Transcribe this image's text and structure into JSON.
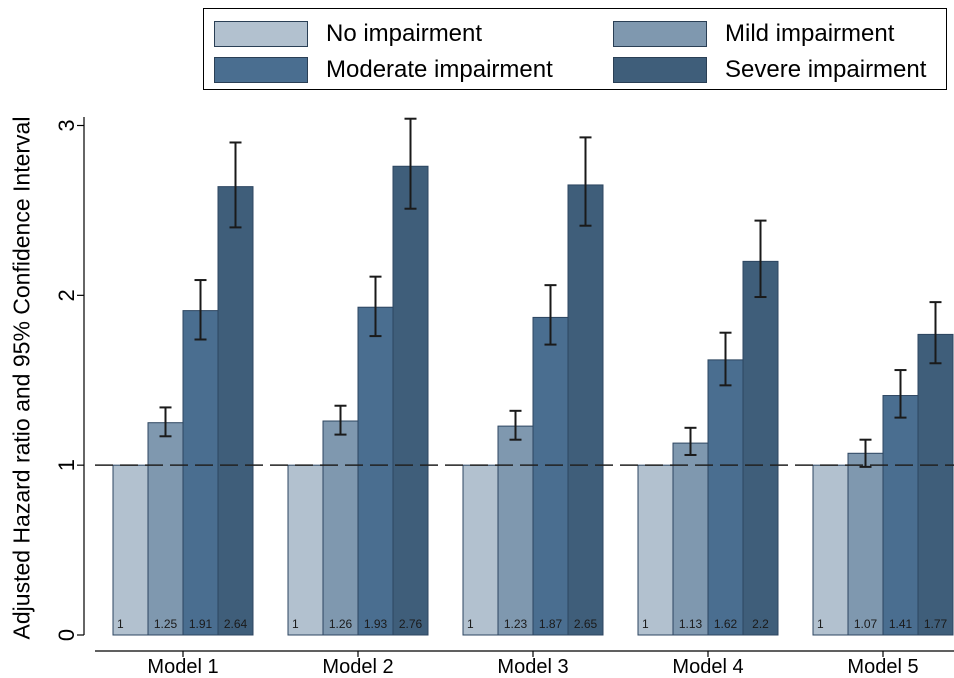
{
  "chart_data": {
    "type": "bar",
    "title": "",
    "xlabel": "",
    "ylabel": "Adjusted Hazard ratio and 95% Confidence Interval",
    "categories": [
      "Model 1",
      "Model 2",
      "Model 3",
      "Model 4",
      "Model 5"
    ],
    "ylim": [
      0,
      3.1
    ],
    "yticks": [
      0,
      1,
      2,
      3
    ],
    "reference_line": 1,
    "legend_position": "top",
    "series": [
      {
        "name": "No impairment",
        "color": "#b2c1cf",
        "values": [
          1,
          1,
          1,
          1,
          1
        ],
        "labels": [
          "1",
          "1",
          "1",
          "1",
          "1"
        ],
        "ci_low": [
          1,
          1,
          1,
          1,
          1
        ],
        "ci_high": [
          1,
          1,
          1,
          1,
          1
        ]
      },
      {
        "name": "Mild impairment",
        "color": "#7f98af",
        "values": [
          1.25,
          1.26,
          1.23,
          1.13,
          1.07
        ],
        "labels": [
          "1.25",
          "1.26",
          "1.23",
          "1.13",
          "1.07"
        ],
        "ci_low": [
          1.17,
          1.18,
          1.15,
          1.06,
          0.99
        ],
        "ci_high": [
          1.34,
          1.35,
          1.32,
          1.22,
          1.15
        ]
      },
      {
        "name": "Moderate impairment",
        "color": "#4a6e90",
        "values": [
          1.91,
          1.93,
          1.87,
          1.62,
          1.41
        ],
        "labels": [
          "1.91",
          "1.93",
          "1.87",
          "1.62",
          "1.41"
        ],
        "ci_low": [
          1.74,
          1.76,
          1.71,
          1.47,
          1.28
        ],
        "ci_high": [
          2.09,
          2.11,
          2.06,
          1.78,
          1.56
        ]
      },
      {
        "name": "Severe impairment",
        "color": "#3f5e7a",
        "values": [
          2.64,
          2.76,
          2.65,
          2.2,
          1.77
        ],
        "labels": [
          "2.64",
          "2.76",
          "2.65",
          "2.2",
          "1.77"
        ],
        "ci_low": [
          2.4,
          2.51,
          2.41,
          1.99,
          1.6
        ],
        "ci_high": [
          2.9,
          3.04,
          2.93,
          2.44,
          1.96
        ]
      }
    ]
  }
}
